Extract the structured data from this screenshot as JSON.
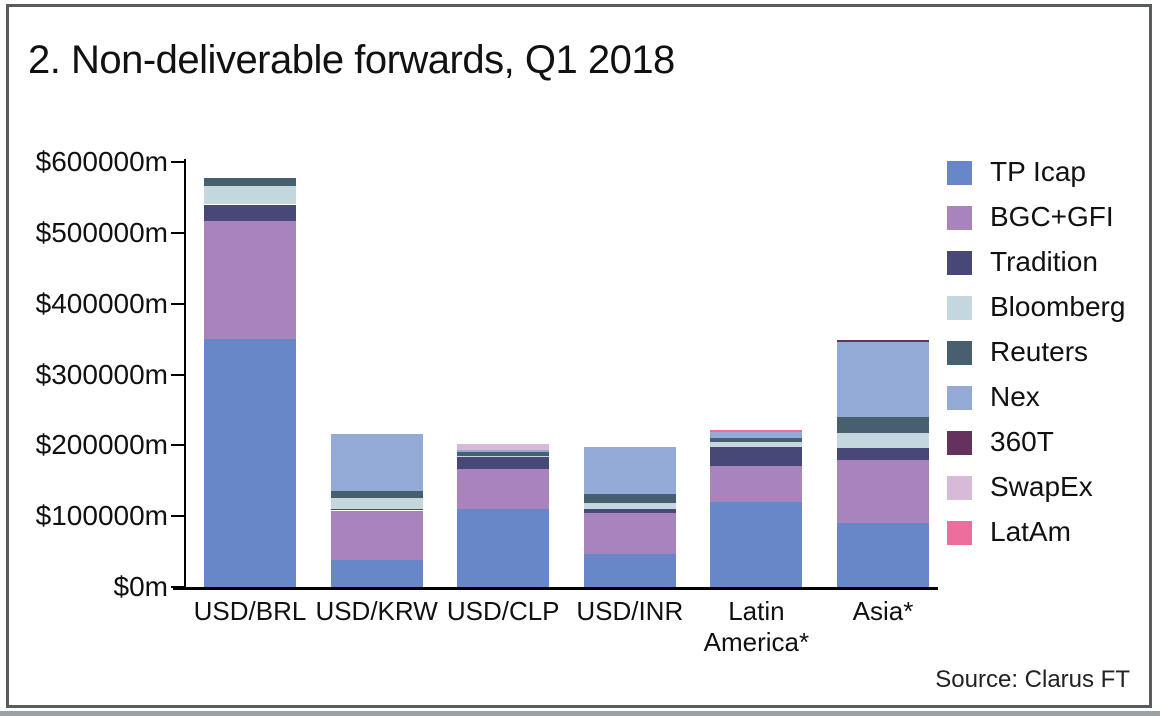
{
  "title": "2. Non-deliverable forwards, Q1 2018",
  "source": "Source: Clarus FT",
  "colors": {
    "frame_border": "#585c60",
    "axis": "#000000",
    "text": "#111111",
    "background": "#ffffff"
  },
  "chart_data": {
    "type": "bar",
    "stacked": true,
    "title": "2. Non-deliverable forwards, Q1 2018",
    "categories": [
      "USD/BRL",
      "USD/KRW",
      "USD/CLP",
      "USD/INR",
      "Latin America*",
      "Asia*"
    ],
    "series": [
      {
        "name": "TP Icap",
        "color": "#6787c9",
        "values": [
          350000,
          38000,
          110000,
          46000,
          120000,
          90000
        ]
      },
      {
        "name": "BGC+GFI",
        "color": "#a983bb",
        "values": [
          167000,
          70000,
          57000,
          59000,
          51000,
          89000
        ]
      },
      {
        "name": "Tradition",
        "color": "#474878",
        "values": [
          23000,
          2000,
          16000,
          5000,
          27000,
          17000
        ]
      },
      {
        "name": "Bloomberg",
        "color": "#c4d6de",
        "values": [
          26000,
          15000,
          2000,
          8000,
          7000,
          21000
        ]
      },
      {
        "name": "Reuters",
        "color": "#476070",
        "values": [
          12000,
          10000,
          5000,
          13000,
          6000,
          23000
        ]
      },
      {
        "name": "Nex",
        "color": "#93aad6",
        "values": [
          0,
          81000,
          4000,
          66000,
          8000,
          106000
        ]
      },
      {
        "name": "360T",
        "color": "#64325c",
        "values": [
          0,
          0,
          0,
          0,
          0,
          3000
        ]
      },
      {
        "name": "SwapEx",
        "color": "#d6bad7",
        "values": [
          0,
          0,
          8000,
          0,
          0,
          0
        ]
      },
      {
        "name": "LatAm",
        "color": "#ec6e9d",
        "values": [
          0,
          0,
          0,
          0,
          3000,
          0
        ]
      }
    ],
    "yticks": [
      "$0m",
      "$100000m",
      "$200000m",
      "$300000m",
      "$400000m",
      "$500000m",
      "$600000m"
    ],
    "ylim": [
      0,
      600000
    ],
    "xlabel": "",
    "ylabel": "",
    "grid": false,
    "legend_position": "right",
    "source": "Source: Clarus FT"
  }
}
